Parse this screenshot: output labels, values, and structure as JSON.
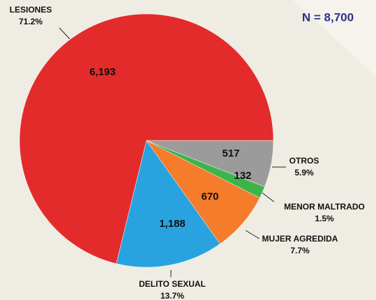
{
  "chart_data": {
    "type": "pie",
    "total_label": "N = 8,700",
    "categories": [
      "LESIONES",
      "DELITO SEXUAL",
      "MUJER AGREDIDA",
      "MENOR MALTRADO",
      "OTROS"
    ],
    "values": [
      6193,
      1188,
      670,
      132,
      517
    ],
    "value_labels": [
      "6,193",
      "1,188",
      "670",
      "132",
      "517"
    ],
    "percent_labels": [
      "71.2%",
      "13.7%",
      "7.7%",
      "1.5%",
      "5.9%"
    ],
    "colors": [
      "#e32b2b",
      "#29a3df",
      "#f47c2b",
      "#3cb44a",
      "#9b9b9b"
    ]
  }
}
